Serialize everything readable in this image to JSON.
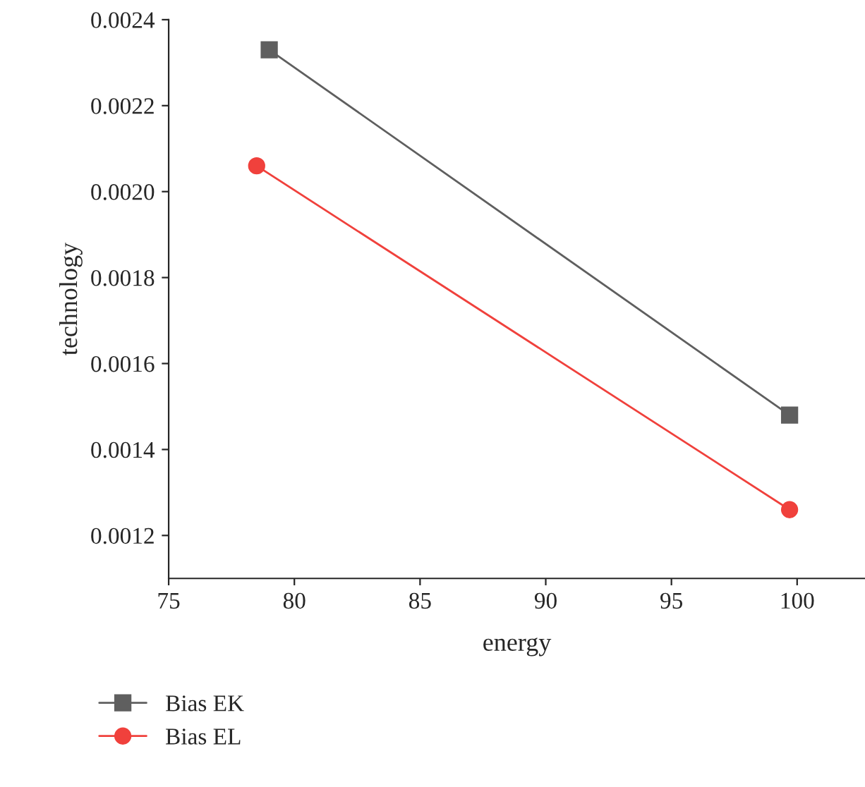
{
  "chart_data": {
    "type": "line",
    "xlabel": "energy",
    "ylabel": "technology",
    "series": [
      {
        "name": "Bias EK",
        "color": "#5f5f5f",
        "marker": "square",
        "x": [
          79.0,
          99.7
        ],
        "values": [
          0.00233,
          0.00148
        ]
      },
      {
        "name": "Bias EL",
        "color": "#f0413c",
        "marker": "circle",
        "x": [
          78.5,
          99.7
        ],
        "values": [
          0.00206,
          0.00126
        ]
      }
    ],
    "xlim": [
      75,
      102.7
    ],
    "ylim": [
      0.0011,
      0.0024
    ],
    "xticks": [
      75,
      80,
      85,
      90,
      95,
      100
    ],
    "yticks": [
      0.0012,
      0.0014,
      0.0016,
      0.0018,
      {
        "value": 0.002,
        "label": "0.0020"
      },
      0.0022,
      0.0024
    ],
    "grid": false,
    "legend": "bottom left",
    "line_style": "solid"
  }
}
